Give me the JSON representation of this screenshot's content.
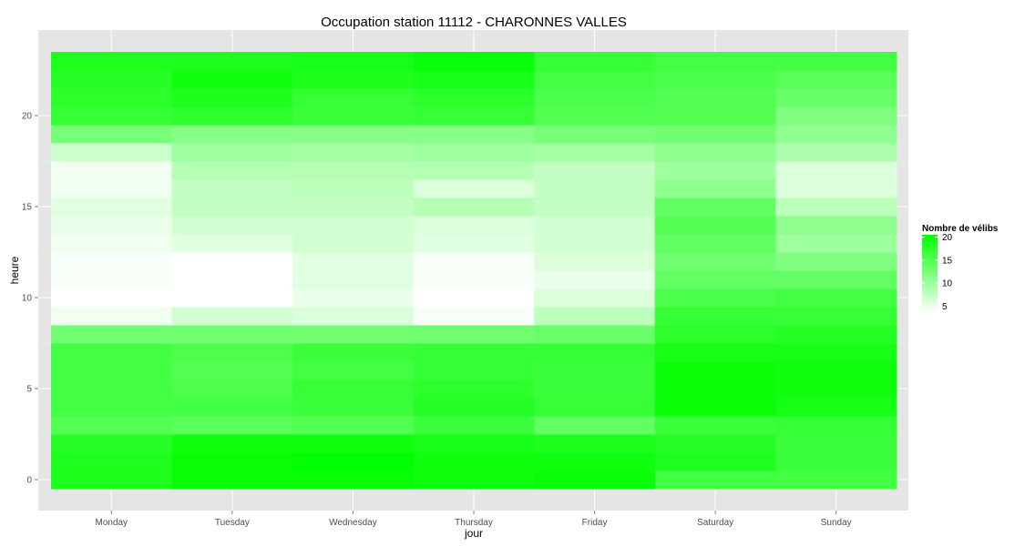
{
  "chart_data": {
    "type": "heatmap",
    "title": "Occupation station 11112 - CHARONNES VALLES",
    "xlabel": "jour",
    "ylabel": "heure",
    "x_categories": [
      "Monday",
      "Tuesday",
      "Wednesday",
      "Thursday",
      "Friday",
      "Saturday",
      "Sunday"
    ],
    "y_values": [
      0,
      1,
      2,
      3,
      4,
      5,
      6,
      7,
      8,
      9,
      10,
      11,
      12,
      13,
      14,
      15,
      16,
      17,
      18,
      19,
      20,
      21,
      22,
      23
    ],
    "y_ticks": [
      0,
      5,
      10,
      15,
      20
    ],
    "ylim": [
      -0.5,
      23.5
    ],
    "grid": true,
    "value_range": [
      3.5,
      20.5
    ],
    "legend": {
      "title": "Nombre de vélibs",
      "ticks": [
        5,
        10,
        15,
        20
      ],
      "placement": "right",
      "low_color": "#ffffff",
      "high_color": "#00ff00"
    },
    "values": [
      [
        18.5,
        20,
        20,
        19.5,
        20,
        16,
        16
      ],
      [
        18.5,
        20,
        20.5,
        19.5,
        19.5,
        18.5,
        16.5
      ],
      [
        18,
        19.5,
        19.5,
        19,
        18.5,
        18,
        16.5
      ],
      [
        15,
        14.5,
        15,
        16.5,
        14,
        16.5,
        17
      ],
      [
        16,
        16,
        16.5,
        18,
        17,
        20,
        19
      ],
      [
        16,
        15.5,
        17,
        17.5,
        16.5,
        20,
        19.5
      ],
      [
        16,
        15,
        16,
        17,
        16.5,
        20,
        19.5
      ],
      [
        16,
        15.5,
        16.5,
        17,
        17,
        19,
        19
      ],
      [
        13,
        13,
        13,
        13,
        13.5,
        17.5,
        18
      ],
      [
        4.5,
        6.5,
        6,
        4,
        8,
        17,
        17
      ],
      [
        3.5,
        3.5,
        5,
        3.5,
        6,
        15.5,
        16
      ],
      [
        4,
        3.5,
        5.5,
        4,
        5,
        14,
        14
      ],
      [
        4,
        3.5,
        5.5,
        4,
        6,
        13,
        12
      ],
      [
        4.5,
        5.5,
        6.5,
        5.5,
        6.5,
        14,
        10
      ],
      [
        5,
        6.5,
        6.5,
        6,
        6.5,
        15,
        11
      ],
      [
        5.5,
        7.5,
        7.5,
        8.5,
        7.5,
        14,
        8
      ],
      [
        4.5,
        7.5,
        8,
        6,
        7.5,
        11,
        6
      ],
      [
        4.5,
        8.5,
        8.5,
        8.5,
        7.5,
        10,
        6
      ],
      [
        7,
        10,
        9.5,
        10,
        9.5,
        11,
        9
      ],
      [
        12.5,
        11.5,
        11.5,
        11.5,
        12.5,
        13,
        11
      ],
      [
        17,
        17.5,
        16.5,
        17,
        15,
        15,
        12
      ],
      [
        17.5,
        18.5,
        17,
        17.5,
        15.5,
        15,
        13.5
      ],
      [
        18,
        19.5,
        18.5,
        19,
        16,
        15.5,
        14.5
      ],
      [
        18.5,
        18.5,
        19,
        20,
        17,
        16,
        16
      ]
    ]
  }
}
